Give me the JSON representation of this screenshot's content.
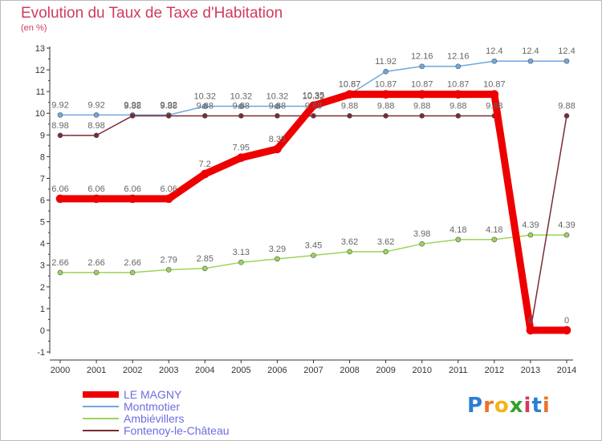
{
  "header": {
    "title": "Evolution du Taux de Taxe d'Habitation",
    "unit": "(en %)"
  },
  "logo": {
    "text": "Proxiti",
    "colors": [
      "#2a7fd4",
      "#e8742a",
      "#f2b418",
      "#33a02c",
      "#d13b5c",
      "#2a7fd4",
      "#e8742a"
    ]
  },
  "chart_data": {
    "type": "line",
    "x": [
      2000,
      2001,
      2002,
      2003,
      2004,
      2005,
      2006,
      2007,
      2008,
      2009,
      2010,
      2011,
      2012,
      2013,
      2014
    ],
    "x_tick_labels": [
      "2000",
      "2001",
      "2002",
      "2003",
      "2004",
      "2005",
      "2006",
      "2007",
      "2008",
      "2009",
      "2010",
      "2011",
      "2012",
      "2013",
      "2014"
    ],
    "ylim": [
      -1,
      13
    ],
    "y_tick_labels": [
      "-1",
      "0",
      "1",
      "2",
      "3",
      "4",
      "5",
      "6",
      "7",
      "8",
      "9",
      "10",
      "11",
      "12",
      "13"
    ],
    "grid": false,
    "legend_position": "bottom-left",
    "series": [
      {
        "name": "Montmotier",
        "color": "#6fa8dc",
        "width": 1.5,
        "values": [
          9.92,
          9.92,
          9.92,
          9.92,
          10.32,
          10.32,
          10.32,
          10.32,
          10.87,
          11.92,
          12.16,
          12.16,
          12.4,
          12.4,
          12.4
        ],
        "labels": [
          "9.92",
          "9.92",
          "9.92",
          "9.92",
          "10.32",
          "10.32",
          "10.32",
          "10.32",
          "10.87",
          "11.92",
          "12.16",
          "12.16",
          "12.4",
          "12.4",
          "12.4"
        ]
      },
      {
        "name": "Ambiévillers",
        "color": "#9cd45a",
        "width": 1.5,
        "values": [
          2.66,
          2.66,
          2.66,
          2.79,
          2.85,
          3.13,
          3.29,
          3.45,
          3.62,
          3.62,
          3.98,
          4.18,
          4.18,
          4.39,
          4.39
        ],
        "labels": [
          "2.66",
          "2.66",
          "2.66",
          "2.79",
          "2.85",
          "3.13",
          "3.29",
          "3.45",
          "3.62",
          "3.62",
          "3.98",
          "4.18",
          "4.18",
          "4.39",
          "4.39"
        ]
      },
      {
        "name": "Fontenoy-le-Château",
        "color": "#7a2a35",
        "width": 1.5,
        "values": [
          8.98,
          8.98,
          9.88,
          9.88,
          9.88,
          9.88,
          9.88,
          9.88,
          9.88,
          9.88,
          9.88,
          9.88,
          9.88,
          0,
          9.88
        ],
        "labels": [
          "8.98",
          "8.98",
          "9.88",
          "9.88",
          "9.88",
          "9.88",
          "9.88",
          "9.88",
          "9.88",
          "9.88",
          "9.88",
          "9.88",
          "9.88",
          "0",
          "9.88"
        ]
      },
      {
        "name": "LE MAGNY",
        "color": "#ee0000",
        "width": 9,
        "values": [
          6.06,
          6.06,
          6.06,
          6.06,
          7.2,
          7.95,
          8.35,
          10.35,
          10.87,
          10.87,
          10.87,
          10.87,
          10.87,
          0,
          0
        ],
        "labels": [
          "6.06",
          "6.06",
          "6.06",
          "6.06",
          "7.2",
          "7.95",
          "8.35",
          "10.35",
          "10.87",
          "10.87",
          "10.87",
          "10.87",
          "10.87",
          "0",
          "0"
        ]
      }
    ],
    "legend": [
      {
        "name": "LE MAGNY",
        "color": "#ee0000",
        "text_color": "#6c6ce0"
      },
      {
        "name": "Montmotier",
        "color": "#6fa8dc",
        "text_color": "#6c6ce0"
      },
      {
        "name": "Ambiévillers",
        "color": "#9cd45a",
        "text_color": "#6c6ce0"
      },
      {
        "name": "Fontenoy-le-Château",
        "color": "#7a2a35",
        "text_color": "#6c6ce0"
      }
    ]
  }
}
